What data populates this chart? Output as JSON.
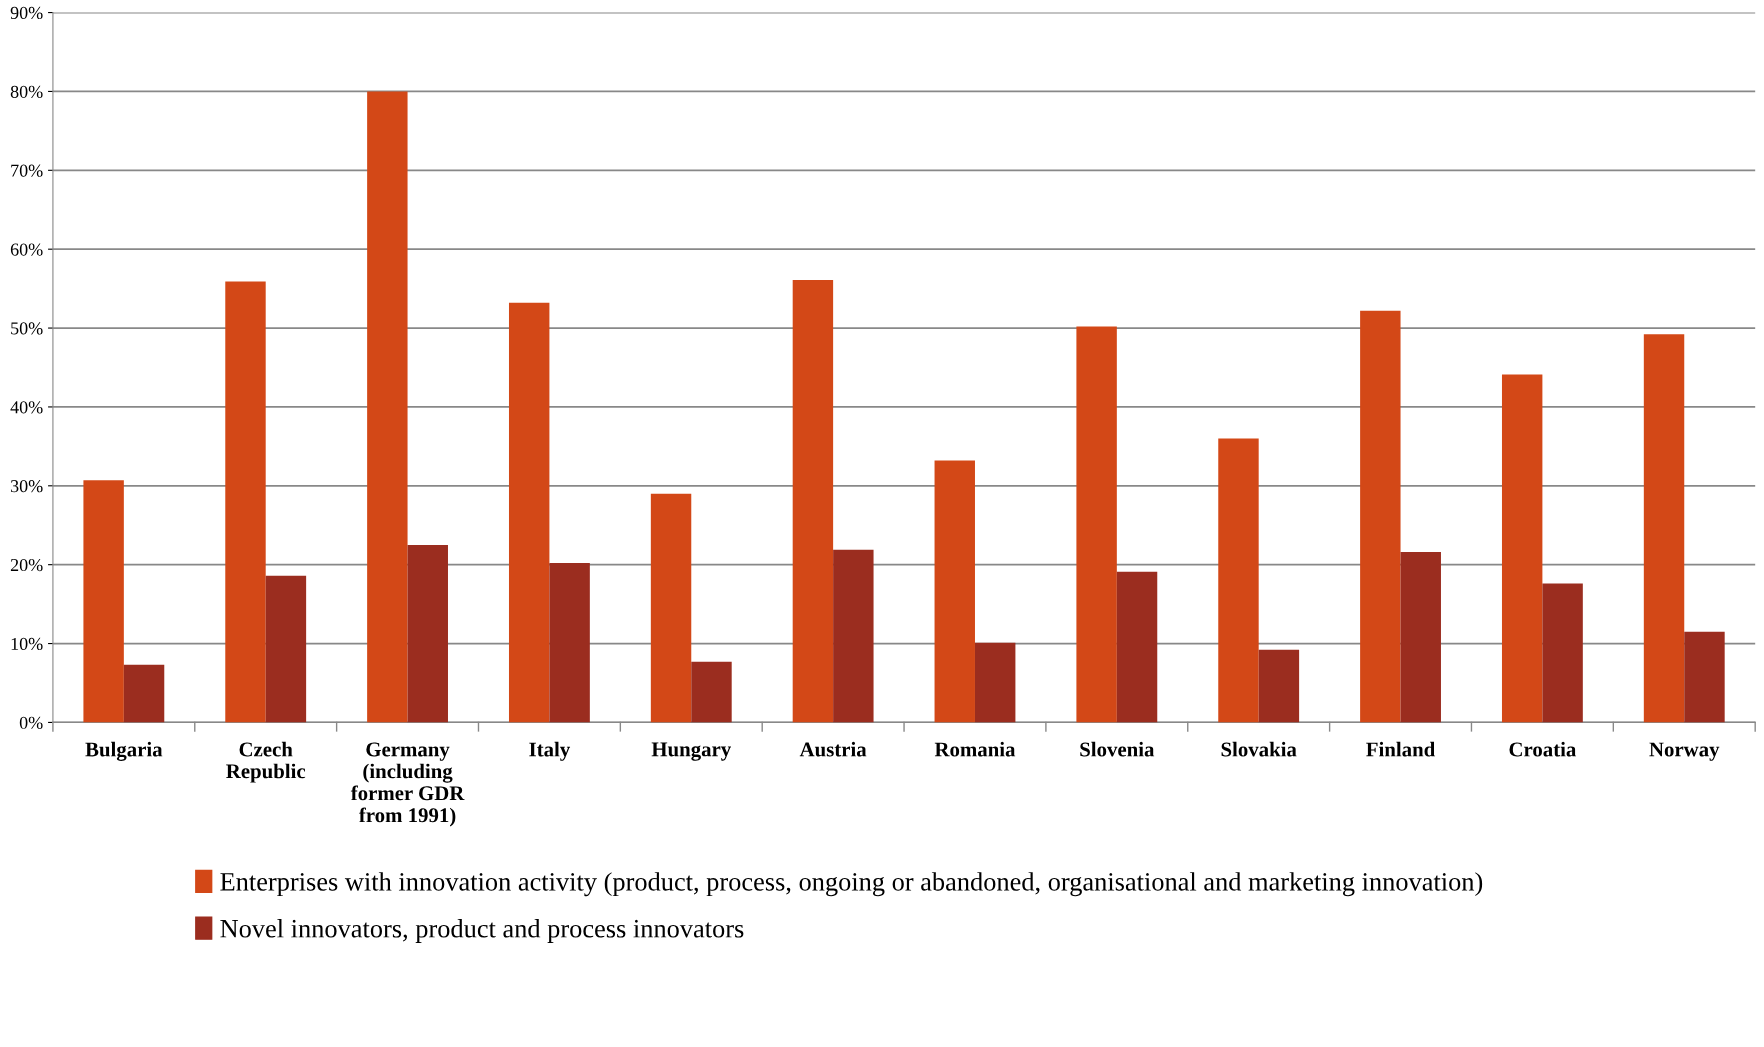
{
  "chart_data": {
    "type": "bar",
    "categories": [
      "Bulgaria",
      "Czech\nRepublic",
      "Germany\n(including\nformer GDR\nfrom 1991)",
      "Italy",
      "Hungary",
      "Austria",
      "Romania",
      "Slovenia",
      "Slovakia",
      "Finland",
      "Croatia",
      "Norway"
    ],
    "series": [
      {
        "name": "Enterprises with innovation activity (product, process, ongoing or abandoned, organisational and marketing innovation)",
        "color": "#d34817",
        "values": [
          30.7,
          55.9,
          80.0,
          53.2,
          29.0,
          56.1,
          33.2,
          50.2,
          36.0,
          52.2,
          44.1,
          49.2
        ]
      },
      {
        "name": "Novel innovators, product and process innovators",
        "color": "#9b2d1f",
        "values": [
          7.3,
          18.6,
          22.5,
          20.2,
          7.7,
          21.9,
          10.1,
          19.1,
          9.2,
          21.6,
          17.6,
          11.5
        ]
      }
    ],
    "ylim": [
      0,
      90
    ],
    "yticks": [
      {
        "value": 0,
        "label": "0%"
      },
      {
        "value": 10,
        "label": "10%"
      },
      {
        "value": 20,
        "label": "20%"
      },
      {
        "value": 30,
        "label": "30%"
      },
      {
        "value": 40,
        "label": "40%"
      },
      {
        "value": 50,
        "label": "50%"
      },
      {
        "value": 60,
        "label": "60%"
      },
      {
        "value": 70,
        "label": "70%"
      },
      {
        "value": 80,
        "label": "80%"
      },
      {
        "value": 90,
        "label": "90%"
      }
    ],
    "grid": "y",
    "legend": "bottom"
  }
}
